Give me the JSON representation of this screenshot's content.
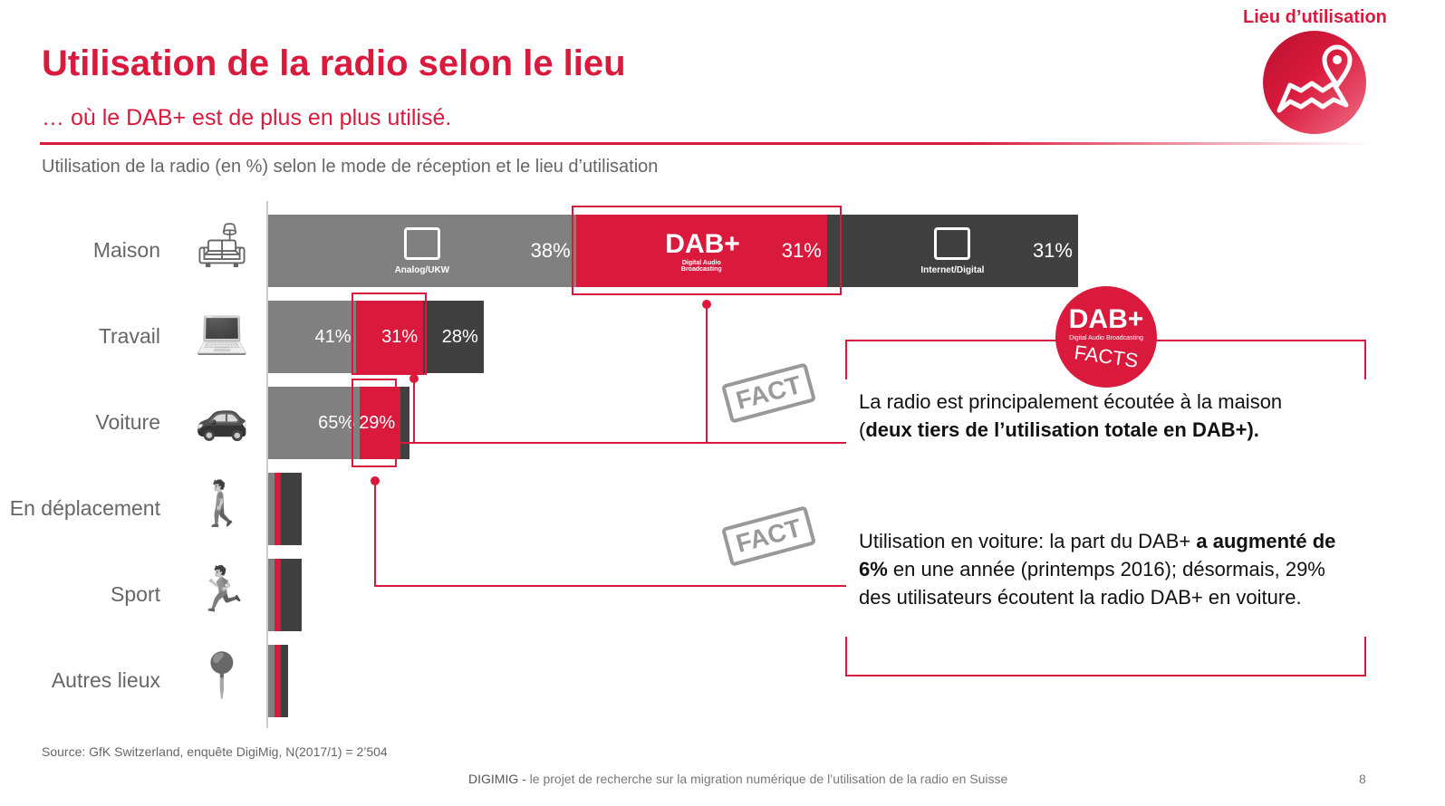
{
  "header": {
    "title": "Utilisation de la radio selon le lieu",
    "subtitle": "… où le DAB+ est de plus en plus utilisé.",
    "corner_label": "Lieu d’utilisation"
  },
  "chart_data": {
    "type": "bar",
    "stacked": true,
    "orientation": "horizontal",
    "title": "Utilisation de la radio (en %) selon le mode de réception et le lieu d’utilisation",
    "categories": [
      "Maison",
      "Travail",
      "Voiture",
      "En déplacement",
      "Sport",
      "Autres lieux"
    ],
    "row_total_relative_to_maison": [
      100,
      26.6,
      17.4,
      4.1,
      4.1,
      2.5
    ],
    "series": [
      {
        "name": "Analog/UKW",
        "color": "#808080",
        "values": [
          38,
          41,
          65,
          19,
          19,
          32
        ],
        "labels": [
          "38%",
          "41%",
          "65%",
          null,
          null,
          null
        ]
      },
      {
        "name": "DAB+",
        "sublabel": "Digital Audio Broadcasting",
        "color": "#d91a3c",
        "values": [
          31,
          31,
          29,
          19,
          19,
          32
        ],
        "labels": [
          "31%",
          "31%",
          "29%",
          null,
          null,
          null
        ]
      },
      {
        "name": "Internet/Digital",
        "color": "#404040",
        "values": [
          31,
          28,
          6,
          62,
          62,
          36
        ],
        "labels": [
          "31%",
          "28%",
          null,
          null,
          null,
          null
        ]
      }
    ]
  },
  "facts": {
    "badge": "DAB+",
    "badge_sub": "Digital Audio Broadcasting",
    "badge_facts": "FACTS",
    "stamp": "FACT",
    "fact1_a": "La radio est principalement écoutée à la maison (",
    "fact1_b": "deux tiers de l’utilisation totale en DAB+).",
    "fact2_a": "Utilisation en voiture: la part du DAB+ ",
    "fact2_b": "a augmenté de 6%",
    "fact2_c": " en une année (printemps 2016); désormais, 29% des utilisateurs écoutent la radio DAB+ en voiture."
  },
  "source": "Source: GfK Switzerland, enquête DigiMig, N(2017/1) = 2’504",
  "footer": {
    "brand": "DIGIMIG -",
    "text": " le projet de recherche sur la migration numérique de l’utilisation de la radio en Suisse",
    "page": "8"
  }
}
